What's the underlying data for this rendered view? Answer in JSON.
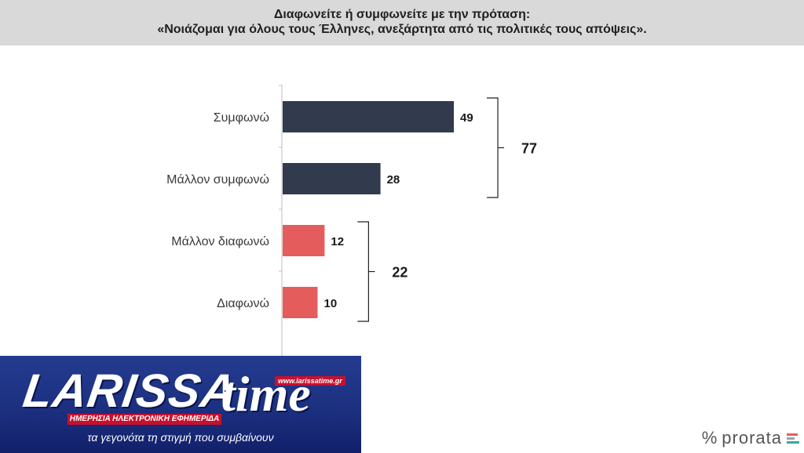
{
  "header": {
    "line1": "Διαφωνείτε ή συμφωνείτε με την πρόταση:",
    "line2": "«Νοιάζομαι για όλους τους Έλληνες, ανεξάρτητα από τις πολιτικές τους απόψεις»."
  },
  "chart_data": {
    "type": "bar",
    "orientation": "horizontal",
    "title": "Διαφωνείτε ή συμφωνείτε με την πρόταση: «Νοιάζομαι για όλους τους Έλληνες, ανεξάρτητα από τις πολιτικές τους απόψεις».",
    "categories": [
      "Συμφωνώ",
      "Μάλλον συμφωνώ",
      "Μάλλον διαφωνώ",
      "Διαφωνώ"
    ],
    "values": [
      49,
      28,
      12,
      10
    ],
    "colors": [
      "#323a4d",
      "#323a4d",
      "#e45c5c",
      "#e45c5c"
    ],
    "xlim": [
      0,
      100
    ],
    "grid": false,
    "groups": [
      {
        "label": "77",
        "from": 0,
        "to": 1
      },
      {
        "label": "22",
        "from": 2,
        "to": 3
      }
    ]
  },
  "logo": {
    "big": "LARISSA",
    "time": "time",
    "url": "www.larissatime.gr",
    "strip": "ΗΜΕΡΗΣΙΑ ΗΛΕΚΤΡΟΝΙΚΗ ΕΦΗΜΕΡΙΔΑ",
    "tagline": "τα γεγονότα τη στιγμή που συμβαίνουν"
  },
  "brand": {
    "symbol": "%",
    "name": "prorata",
    "bar_colors": [
      "#e45c5c",
      "#9aa3b5",
      "#3aa6a0"
    ]
  }
}
